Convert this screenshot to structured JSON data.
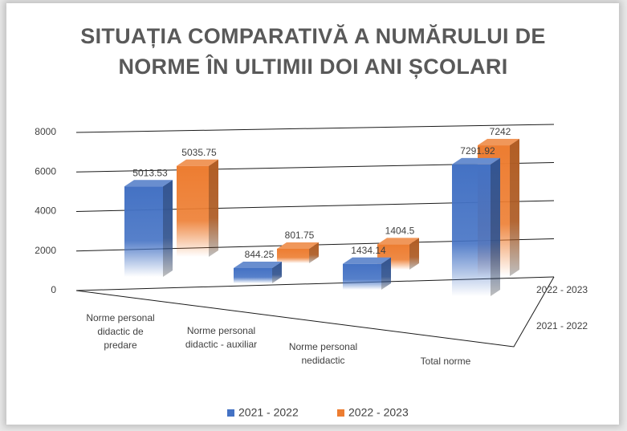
{
  "chart_data": {
    "type": "bar3d",
    "title": "SITUAȚIA COMPARATIVĂ A NUMĂRULUI DE NORME ÎN ULTIMII DOI ANI ȘCOLARI",
    "categories": [
      "Norme personal didactic de predare",
      "Norme personal didactic - auxiliar",
      "Norme personal nedidactic",
      "Total norme"
    ],
    "series": [
      {
        "name": "2021 - 2022",
        "color": "#4472c4",
        "values": [
          5013.53,
          844.25,
          1434.14,
          7291.92
        ]
      },
      {
        "name": "2022 - 2023",
        "color": "#ed7d31",
        "values": [
          5035.75,
          801.75,
          1404.5,
          7242
        ]
      }
    ],
    "ylim": [
      0,
      8000
    ],
    "yticks": [
      0,
      2000,
      4000,
      6000,
      8000
    ],
    "grid": true,
    "legend": "bottom"
  }
}
